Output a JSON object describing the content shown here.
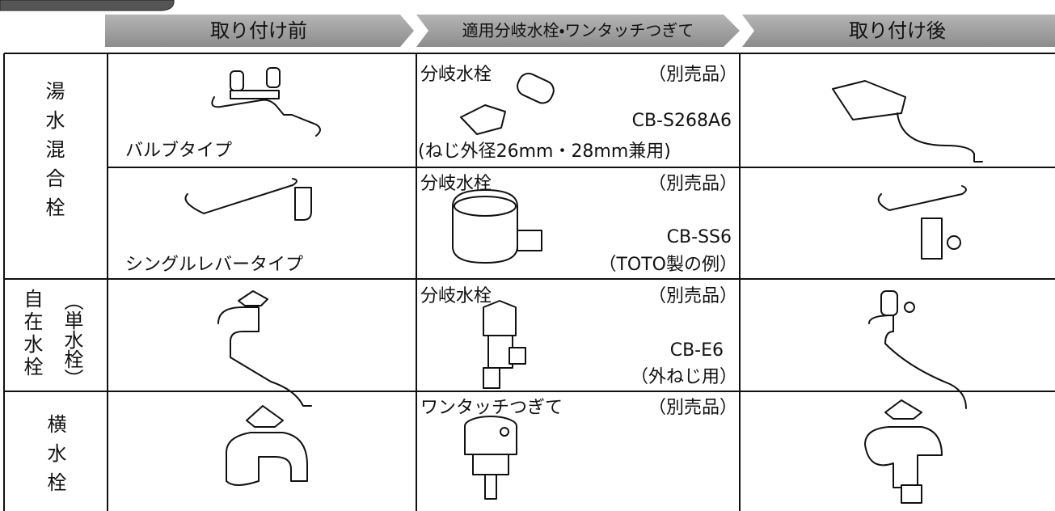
{
  "header_tabs": [
    "取り付け前",
    "適用分岐水栓・ワンタッチつぎて",
    "取り付け後"
  ],
  "table": {
    "groups": [
      {
        "label": "湯水混合栓"
      },
      {
        "label": "自在水栓",
        "sub_label": "（単水栓）"
      },
      {
        "label": "横水栓"
      }
    ],
    "rows": [
      {
        "before": "バルブタイプ",
        "product": "分岐水栓",
        "note": "（別売品）",
        "model": "CB-S268A6",
        "spec": "(ねじ外径26mm・28mm兼用)"
      },
      {
        "before": "シングルレバータイプ",
        "product": "分岐水栓",
        "note": "（別売品）",
        "model": "CB-SS6",
        "spec": "（TOTO製の例）"
      },
      {
        "product": "分岐水栓",
        "note": "（別売品）",
        "model": "CB-E6",
        "spec": "（外ねじ用）"
      },
      {
        "product": "ワンタッチつぎて",
        "note": "（別売品）"
      }
    ]
  }
}
